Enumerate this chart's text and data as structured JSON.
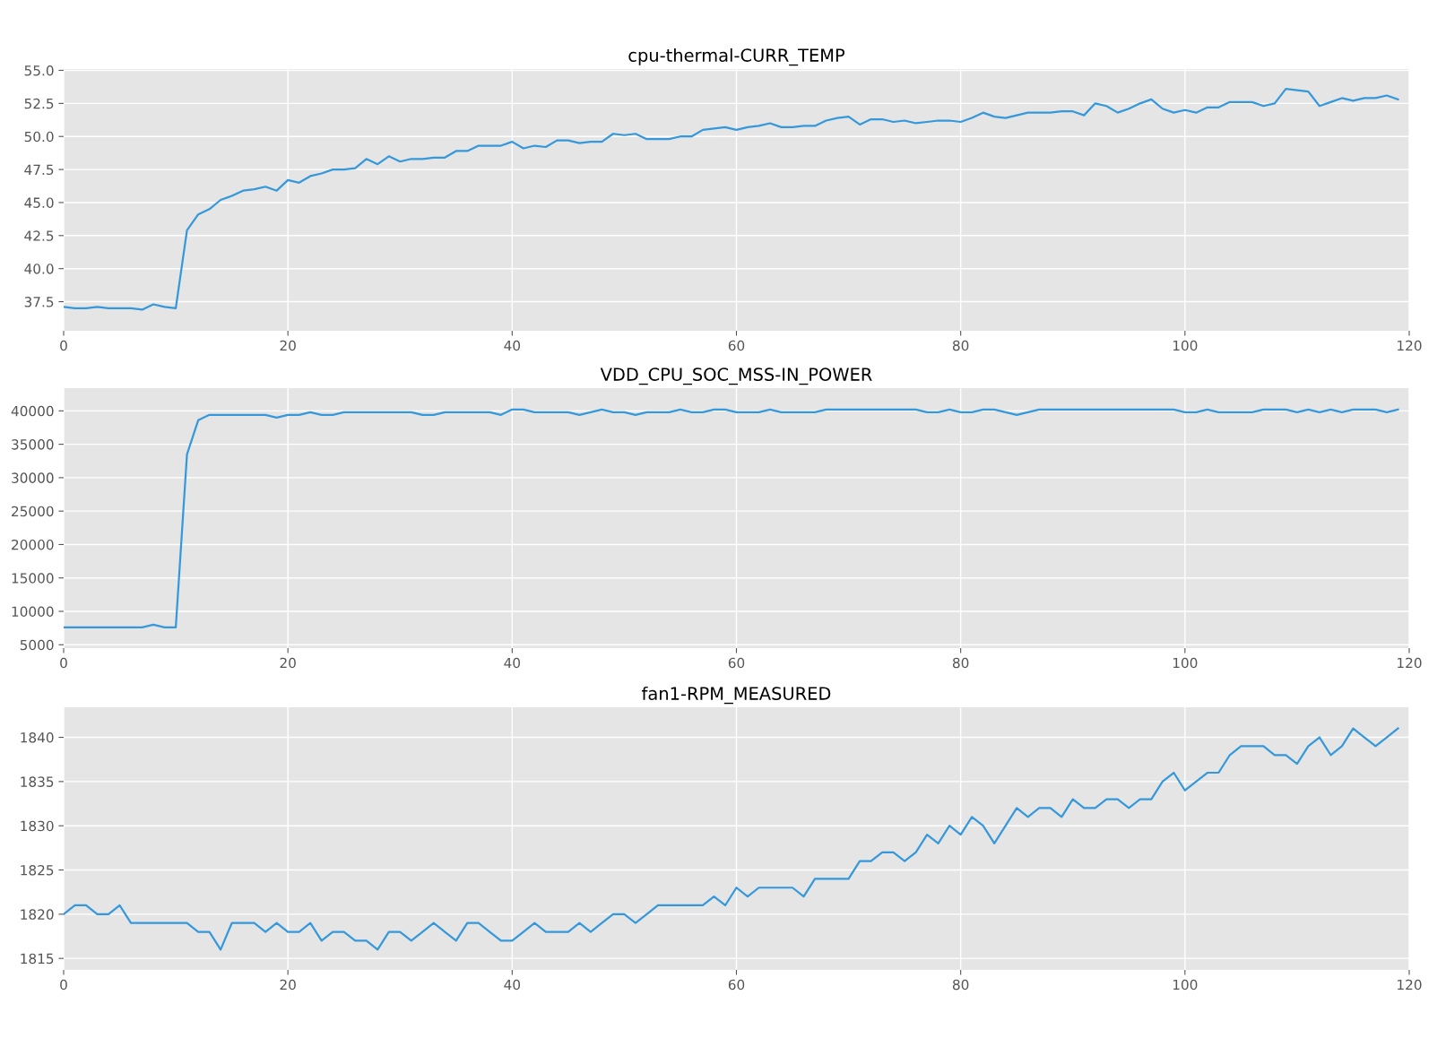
{
  "chart_data": [
    {
      "type": "line",
      "title": "cpu-thermal-CURR_TEMP",
      "xlim": [
        0,
        120
      ],
      "xticks": [
        0,
        20,
        40,
        60,
        80,
        100,
        120
      ],
      "ylim": [
        35.3,
        55.1
      ],
      "yticks": [
        {
          "value": 37.5,
          "label": "37.5"
        },
        {
          "value": 40,
          "label": "40.0"
        },
        {
          "value": 42.5,
          "label": "42.5"
        },
        {
          "value": 45,
          "label": "45.0"
        },
        {
          "value": 47.5,
          "label": "47.5"
        },
        {
          "value": 50,
          "label": "50.0"
        },
        {
          "value": 52.5,
          "label": "52.5"
        },
        {
          "value": 55,
          "label": "55.0"
        }
      ],
      "grid": true,
      "line_style": "solid",
      "x": [
        0,
        1,
        2,
        3,
        4,
        5,
        6,
        7,
        8,
        9,
        10,
        11,
        12,
        13,
        14,
        15,
        16,
        17,
        18,
        19,
        20,
        21,
        22,
        23,
        24,
        25,
        26,
        27,
        28,
        29,
        30,
        31,
        32,
        33,
        34,
        35,
        36,
        37,
        38,
        39,
        40,
        41,
        42,
        43,
        44,
        45,
        46,
        47,
        48,
        49,
        50,
        51,
        52,
        53,
        54,
        55,
        56,
        57,
        58,
        59,
        60,
        61,
        62,
        63,
        64,
        65,
        66,
        67,
        68,
        69,
        70,
        71,
        72,
        73,
        74,
        75,
        76,
        77,
        78,
        79,
        80,
        81,
        82,
        83,
        84,
        85,
        86,
        87,
        88,
        89,
        90,
        91,
        92,
        93,
        94,
        95,
        96,
        97,
        98,
        99,
        100,
        101,
        102,
        103,
        104,
        105,
        106,
        107,
        108,
        109,
        110,
        111,
        112,
        113,
        114,
        115,
        116,
        117,
        118,
        119
      ],
      "series": [
        {
          "color": "#3498db",
          "values": [
            37.1,
            37.0,
            37.0,
            37.1,
            37.0,
            37.0,
            37.0,
            36.9,
            37.3,
            37.1,
            37.0,
            42.9,
            44.1,
            44.5,
            45.2,
            45.5,
            45.9,
            46.0,
            46.2,
            45.9,
            46.7,
            46.5,
            47.0,
            47.2,
            47.5,
            47.5,
            47.6,
            48.3,
            47.9,
            48.5,
            48.1,
            48.3,
            48.3,
            48.4,
            48.4,
            48.9,
            48.9,
            49.3,
            49.3,
            49.3,
            49.6,
            49.1,
            49.3,
            49.2,
            49.7,
            49.7,
            49.5,
            49.6,
            49.6,
            50.2,
            50.1,
            50.2,
            49.8,
            49.8,
            49.8,
            50.0,
            50.0,
            50.5,
            50.6,
            50.7,
            50.5,
            50.7,
            50.8,
            51.0,
            50.7,
            50.7,
            50.8,
            50.8,
            51.2,
            51.4,
            51.5,
            50.9,
            51.3,
            51.3,
            51.1,
            51.2,
            51.0,
            51.1,
            51.2,
            51.2,
            51.1,
            51.4,
            51.8,
            51.5,
            51.4,
            51.6,
            51.8,
            51.8,
            51.8,
            51.9,
            51.9,
            51.6,
            52.5,
            52.3,
            51.8,
            52.1,
            52.5,
            52.8,
            52.1,
            51.8,
            52.0,
            51.8,
            52.2,
            52.2,
            52.6,
            52.6,
            52.6,
            52.3,
            52.5,
            53.6,
            53.5,
            53.4,
            52.3,
            52.6,
            52.9,
            52.7,
            52.9,
            52.9,
            53.1,
            52.8
          ]
        }
      ]
    },
    {
      "type": "line",
      "title": "VDD_CPU_SOC_MSS-IN_POWER",
      "xlim": [
        0,
        120
      ],
      "xticks": [
        0,
        20,
        40,
        60,
        80,
        100,
        120
      ],
      "ylim": [
        4500,
        43400
      ],
      "yticks": [
        5000,
        10000,
        15000,
        20000,
        25000,
        30000,
        35000,
        40000
      ],
      "grid": true,
      "line_style": "solid",
      "x": [
        0,
        1,
        2,
        3,
        4,
        5,
        6,
        7,
        8,
        9,
        10,
        11,
        12,
        13,
        14,
        15,
        16,
        17,
        18,
        19,
        20,
        21,
        22,
        23,
        24,
        25,
        26,
        27,
        28,
        29,
        30,
        31,
        32,
        33,
        34,
        35,
        36,
        37,
        38,
        39,
        40,
        41,
        42,
        43,
        44,
        45,
        46,
        47,
        48,
        49,
        50,
        51,
        52,
        53,
        54,
        55,
        56,
        57,
        58,
        59,
        60,
        61,
        62,
        63,
        64,
        65,
        66,
        67,
        68,
        69,
        70,
        71,
        72,
        73,
        74,
        75,
        76,
        77,
        78,
        79,
        80,
        81,
        82,
        83,
        84,
        85,
        86,
        87,
        88,
        89,
        90,
        91,
        92,
        93,
        94,
        95,
        96,
        97,
        98,
        99,
        100,
        101,
        102,
        103,
        104,
        105,
        106,
        107,
        108,
        109,
        110,
        111,
        112,
        113,
        114,
        115,
        116,
        117,
        118,
        119
      ],
      "series": [
        {
          "color": "#3498db",
          "values": [
            7600,
            7600,
            7600,
            7600,
            7600,
            7600,
            7600,
            7600,
            8000,
            7600,
            7600,
            33500,
            38600,
            39400,
            39400,
            39400,
            39400,
            39400,
            39400,
            39000,
            39400,
            39400,
            39800,
            39400,
            39400,
            39800,
            39800,
            39800,
            39800,
            39800,
            39800,
            39800,
            39400,
            39400,
            39800,
            39800,
            39800,
            39800,
            39800,
            39400,
            40200,
            40200,
            39800,
            39800,
            39800,
            39800,
            39400,
            39800,
            40200,
            39800,
            39800,
            39400,
            39800,
            39800,
            39800,
            40200,
            39800,
            39800,
            40200,
            40200,
            39800,
            39800,
            39800,
            40200,
            39800,
            39800,
            39800,
            39800,
            40200,
            40200,
            40200,
            40200,
            40200,
            40200,
            40200,
            40200,
            40200,
            39800,
            39800,
            40200,
            39800,
            39800,
            40200,
            40200,
            39800,
            39400,
            39800,
            40200,
            40200,
            40200,
            40200,
            40200,
            40200,
            40200,
            40200,
            40200,
            40200,
            40200,
            40200,
            40200,
            39800,
            39800,
            40200,
            39800,
            39800,
            39800,
            39800,
            40200,
            40200,
            40200,
            39800,
            40200,
            39800,
            40200,
            39800,
            40200,
            40200,
            40200,
            39800,
            40200
          ]
        }
      ]
    },
    {
      "type": "line",
      "title": "fan1-RPM_MEASURED",
      "xlim": [
        0,
        120
      ],
      "xticks": [
        0,
        20,
        40,
        60,
        80,
        100,
        120
      ],
      "ylim": [
        1813.7,
        1843.4
      ],
      "yticks": [
        1815,
        1820,
        1825,
        1830,
        1835,
        1840
      ],
      "grid": true,
      "line_style": "solid",
      "x": [
        0,
        1,
        2,
        3,
        4,
        5,
        6,
        7,
        8,
        9,
        10,
        11,
        12,
        13,
        14,
        15,
        16,
        17,
        18,
        19,
        20,
        21,
        22,
        23,
        24,
        25,
        26,
        27,
        28,
        29,
        30,
        31,
        32,
        33,
        34,
        35,
        36,
        37,
        38,
        39,
        40,
        41,
        42,
        43,
        44,
        45,
        46,
        47,
        48,
        49,
        50,
        51,
        52,
        53,
        54,
        55,
        56,
        57,
        58,
        59,
        60,
        61,
        62,
        63,
        64,
        65,
        66,
        67,
        68,
        69,
        70,
        71,
        72,
        73,
        74,
        75,
        76,
        77,
        78,
        79,
        80,
        81,
        82,
        83,
        84,
        85,
        86,
        87,
        88,
        89,
        90,
        91,
        92,
        93,
        94,
        95,
        96,
        97,
        98,
        99,
        100,
        101,
        102,
        103,
        104,
        105,
        106,
        107,
        108,
        109,
        110,
        111,
        112,
        113,
        114,
        115,
        116,
        117,
        118,
        119
      ],
      "series": [
        {
          "color": "#3498db",
          "values": [
            1820,
            1821,
            1821,
            1820,
            1820,
            1821,
            1819,
            1819,
            1819,
            1819,
            1819,
            1819,
            1818,
            1818,
            1816,
            1819,
            1819,
            1819,
            1818,
            1819,
            1818,
            1818,
            1819,
            1817,
            1818,
            1818,
            1817,
            1817,
            1816,
            1818,
            1818,
            1817,
            1818,
            1819,
            1818,
            1817,
            1819,
            1819,
            1818,
            1817,
            1817,
            1818,
            1819,
            1818,
            1818,
            1818,
            1819,
            1818,
            1819,
            1820,
            1820,
            1819,
            1820,
            1821,
            1821,
            1821,
            1821,
            1821,
            1822,
            1821,
            1823,
            1822,
            1823,
            1823,
            1823,
            1823,
            1822,
            1824,
            1824,
            1824,
            1824,
            1826,
            1826,
            1827,
            1827,
            1826,
            1827,
            1829,
            1828,
            1830,
            1829,
            1831,
            1830,
            1828,
            1830,
            1832,
            1831,
            1832,
            1832,
            1831,
            1833,
            1832,
            1832,
            1833,
            1833,
            1832,
            1833,
            1833,
            1835,
            1836,
            1834,
            1835,
            1836,
            1836,
            1838,
            1839,
            1839,
            1839,
            1838,
            1838,
            1837,
            1839,
            1840,
            1838,
            1839,
            1841,
            1840,
            1839,
            1840,
            1841
          ]
        }
      ]
    }
  ]
}
